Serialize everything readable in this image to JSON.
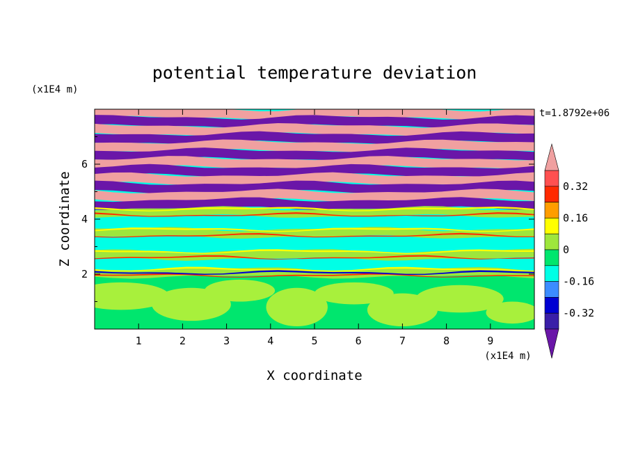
{
  "chart_data": {
    "type": "heatmap",
    "title": "potential temperature deviation",
    "xlabel": "X coordinate",
    "ylabel": "Z coordinate",
    "x_scale_note": "(x1E4 m)",
    "y_scale_note": "(x1E4 m)",
    "time_label": "t=1.8792e+06",
    "xlim": [
      0,
      10
    ],
    "ylim": [
      0,
      8
    ],
    "x_ticks": [
      1,
      2,
      3,
      4,
      5,
      6,
      7,
      8,
      9
    ],
    "y_ticks": [
      2,
      4,
      6
    ],
    "colorbar": {
      "levels": [
        -0.48,
        -0.4,
        -0.32,
        -0.24,
        -0.16,
        -0.08,
        0,
        0.08,
        0.16,
        0.24,
        0.32,
        0.4,
        0.48
      ],
      "labels": [
        "0.32",
        "0.16",
        "0",
        "-0.16",
        "-0.32"
      ],
      "label_values": [
        0.32,
        0.16,
        0,
        -0.16,
        -0.32
      ],
      "colors": [
        "#ff5050",
        "#ff2a00",
        "#ff9d00",
        "#ffff00",
        "#9ee63c",
        "#00e66e",
        "#00ffe6",
        "#3c8cff",
        "#0000d2",
        "#3a1fa8"
      ],
      "over_color": "#f0a0a0",
      "under_color": "#6a16a8"
    },
    "bands": [
      {
        "z": 7.85,
        "level": "over"
      },
      {
        "z": 7.55,
        "level": "under"
      },
      {
        "z": 7.25,
        "level": "over"
      },
      {
        "z": 6.95,
        "level": "under"
      },
      {
        "z": 6.65,
        "level": "over"
      },
      {
        "z": 6.35,
        "level": "under"
      },
      {
        "z": 6.05,
        "level": "over"
      },
      {
        "z": 5.75,
        "level": "under"
      },
      {
        "z": 5.45,
        "level": "over"
      },
      {
        "z": 5.15,
        "level": "under"
      },
      {
        "z": 4.85,
        "level": "over"
      },
      {
        "z": 4.55,
        "level": "under"
      },
      {
        "z": 4.25,
        "level": "mixed"
      },
      {
        "z": 3.9,
        "level": "cyan"
      },
      {
        "z": 3.5,
        "level": "mixed"
      },
      {
        "z": 3.1,
        "level": "cyan"
      },
      {
        "z": 2.7,
        "level": "mixed"
      },
      {
        "z": 2.35,
        "level": "cyan"
      },
      {
        "z": 2.05,
        "level": "mixed"
      },
      {
        "z": 1.0,
        "level": "lowfield"
      }
    ]
  }
}
